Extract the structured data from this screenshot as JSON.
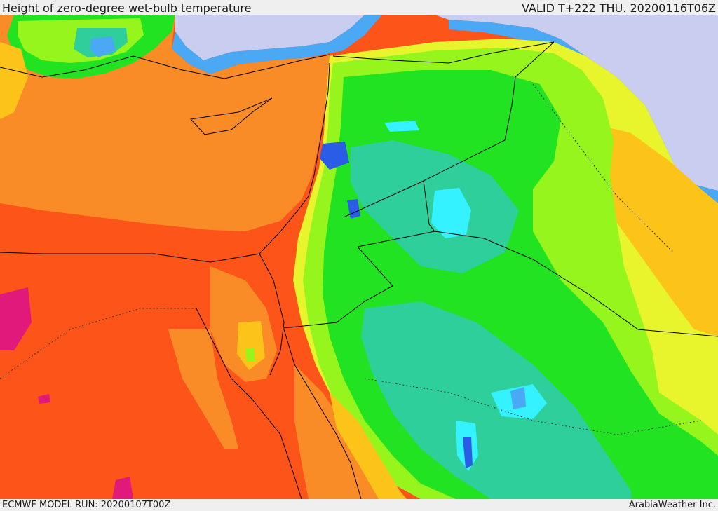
{
  "header": {
    "title": "Height of zero-degree wet-bulb temperature",
    "valid_time": "VALID T+222 THU. 20200116T06Z"
  },
  "footer": {
    "model_run": "ECMWF MODEL RUN: 20200107T00Z",
    "credit": "ArabiaWeather Inc."
  },
  "map": {
    "palette": {
      "sea_lavender": "#c9cdf0",
      "blue": "#2b5ce8",
      "light_blue": "#4aa8f5",
      "cyan": "#34f2ff",
      "teal": "#2ecf9a",
      "green": "#22e322",
      "light_green": "#95f51c",
      "yellow": "#e9f52c",
      "light_orange": "#fcc419",
      "orange": "#fa8c28",
      "red_orange": "#fc5419",
      "magenta": "#e0197a",
      "border_line": "#000000"
    }
  }
}
